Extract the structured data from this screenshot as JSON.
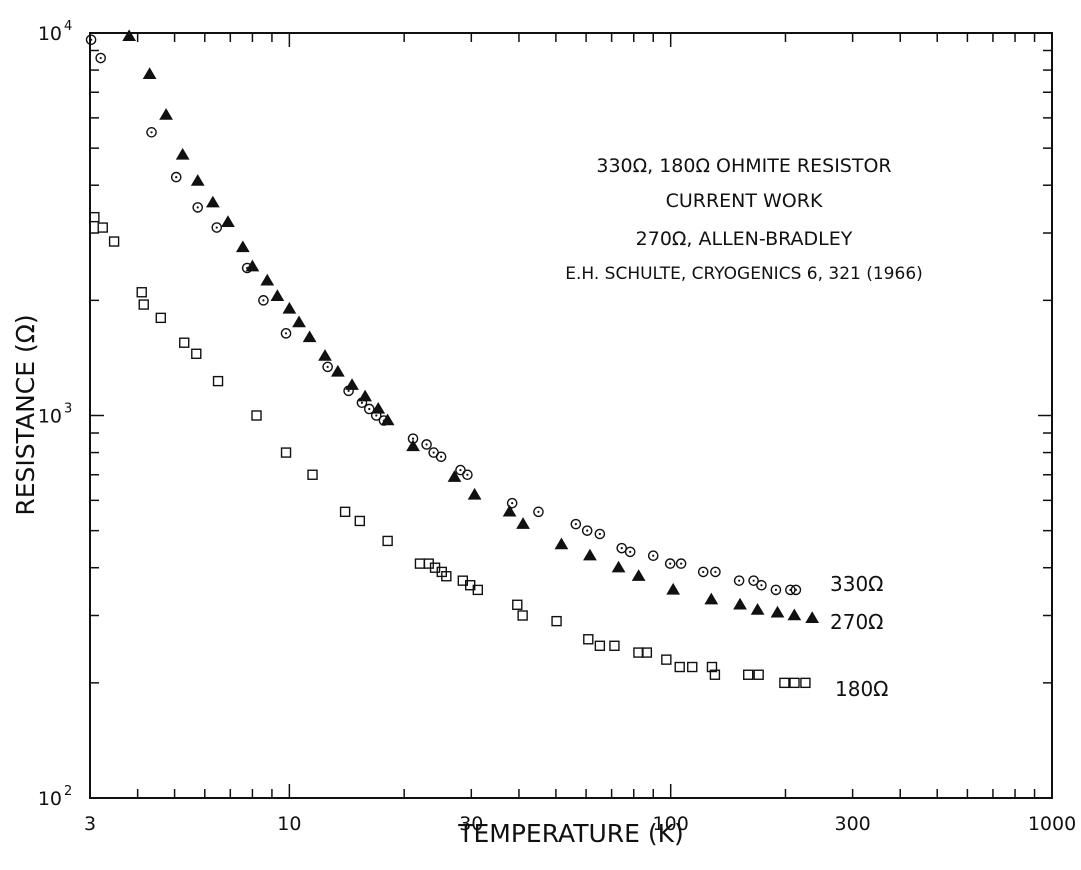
{
  "chart_data": {
    "type": "scatter",
    "x_scale": "log",
    "y_scale": "log",
    "xlim": [
      3,
      1000
    ],
    "ylim": [
      100,
      10000
    ],
    "xlabel": "TEMPERATURE (K)",
    "ylabel": "RESISTANCE (Ω)",
    "x_tick_labels": [
      "3",
      "10",
      "30",
      "100",
      "300",
      "1000"
    ],
    "x_tick_values": [
      3,
      10,
      30,
      100,
      300,
      1000
    ],
    "y_tick_labels": [
      {
        "base": "10",
        "exp": "2",
        "value": 100
      },
      {
        "base": "10",
        "exp": "3",
        "value": 1000
      },
      {
        "base": "10",
        "exp": "4",
        "value": 10000
      }
    ],
    "grid": false,
    "legend_text": [
      "330Ω, 180Ω OHMITE RESISTOR",
      "CURRENT WORK",
      "270Ω, ALLEN-BRADLEY",
      "E.H. SCHULTE, CRYOGENICS 6, 321 (1966)"
    ],
    "series": [
      {
        "name": "330Ω",
        "marker": "open-circle",
        "points": [
          [
            3.02,
            9600
          ],
          [
            3.2,
            8600
          ],
          [
            4.35,
            5500
          ],
          [
            5.05,
            4200
          ],
          [
            5.75,
            3500
          ],
          [
            6.45,
            3100
          ],
          [
            7.75,
            2430
          ],
          [
            8.55,
            2000
          ],
          [
            9.8,
            1640
          ],
          [
            12.6,
            1340
          ],
          [
            14.3,
            1160
          ],
          [
            15.5,
            1080
          ],
          [
            16.2,
            1040
          ],
          [
            16.9,
            1000
          ],
          [
            17.7,
            970
          ],
          [
            21.1,
            870
          ],
          [
            22.9,
            840
          ],
          [
            23.9,
            800
          ],
          [
            25,
            780
          ],
          [
            28.1,
            720
          ],
          [
            29.3,
            700
          ],
          [
            38.4,
            590
          ],
          [
            45,
            560
          ],
          [
            56.4,
            520
          ],
          [
            60.4,
            500
          ],
          [
            65.2,
            490
          ],
          [
            74.4,
            450
          ],
          [
            78.3,
            440
          ],
          [
            90,
            430
          ],
          [
            99.7,
            410
          ],
          [
            106.5,
            410
          ],
          [
            121.7,
            390
          ],
          [
            131,
            390
          ],
          [
            151.2,
            370
          ],
          [
            165,
            370
          ],
          [
            173,
            360
          ],
          [
            188.8,
            350
          ],
          [
            206,
            350
          ],
          [
            213,
            350
          ]
        ]
      },
      {
        "name": "270Ω",
        "marker": "filled-triangle",
        "points": [
          [
            3.8,
            9800
          ],
          [
            4.3,
            7800
          ],
          [
            4.75,
            6100
          ],
          [
            5.25,
            4800
          ],
          [
            5.75,
            4100
          ],
          [
            6.3,
            3600
          ],
          [
            6.9,
            3200
          ],
          [
            7.55,
            2750
          ],
          [
            8.0,
            2450
          ],
          [
            8.75,
            2250
          ],
          [
            9.3,
            2050
          ],
          [
            10.0,
            1900
          ],
          [
            10.6,
            1750
          ],
          [
            11.3,
            1600
          ],
          [
            12.4,
            1430
          ],
          [
            13.4,
            1300
          ],
          [
            14.6,
            1200
          ],
          [
            15.8,
            1120
          ],
          [
            17.1,
            1040
          ],
          [
            18.1,
            970
          ],
          [
            21.1,
            830
          ],
          [
            27.1,
            690
          ],
          [
            30.6,
            620
          ],
          [
            37.8,
            560
          ],
          [
            41,
            520
          ],
          [
            51.7,
            460
          ],
          [
            61.4,
            430
          ],
          [
            73,
            400
          ],
          [
            82.4,
            380
          ],
          [
            101.5,
            350
          ],
          [
            127.8,
            330
          ],
          [
            152,
            320
          ],
          [
            169,
            310
          ],
          [
            190.6,
            305
          ],
          [
            211,
            300
          ],
          [
            235,
            295
          ]
        ]
      },
      {
        "name": "180Ω",
        "marker": "open-square",
        "points": [
          [
            3.08,
            3300
          ],
          [
            3.24,
            3100
          ],
          [
            3.47,
            2850
          ],
          [
            4.1,
            2100
          ],
          [
            4.15,
            1950
          ],
          [
            4.6,
            1800
          ],
          [
            5.3,
            1550
          ],
          [
            5.7,
            1450
          ],
          [
            6.5,
            1230
          ],
          [
            8.2,
            1000
          ],
          [
            9.8,
            800
          ],
          [
            11.5,
            700
          ],
          [
            14,
            560
          ],
          [
            15.3,
            530
          ],
          [
            18.1,
            470
          ],
          [
            22,
            410
          ],
          [
            23.2,
            410
          ],
          [
            24.1,
            400
          ],
          [
            25.1,
            390
          ],
          [
            25.8,
            380
          ],
          [
            28.5,
            370
          ],
          [
            29.8,
            360
          ],
          [
            31.2,
            350
          ],
          [
            39.6,
            320
          ],
          [
            40.9,
            300
          ],
          [
            50.2,
            290
          ],
          [
            60.8,
            260
          ],
          [
            65.2,
            250
          ],
          [
            71.2,
            250
          ],
          [
            82.3,
            240
          ],
          [
            86.6,
            240
          ],
          [
            97.4,
            230
          ],
          [
            105.6,
            220
          ],
          [
            113.9,
            220
          ],
          [
            128.3,
            220
          ],
          [
            130.6,
            210
          ],
          [
            159.7,
            210
          ],
          [
            170.1,
            210
          ],
          [
            198.7,
            200
          ],
          [
            211.2,
            200
          ],
          [
            225.6,
            200
          ]
        ]
      }
    ]
  }
}
